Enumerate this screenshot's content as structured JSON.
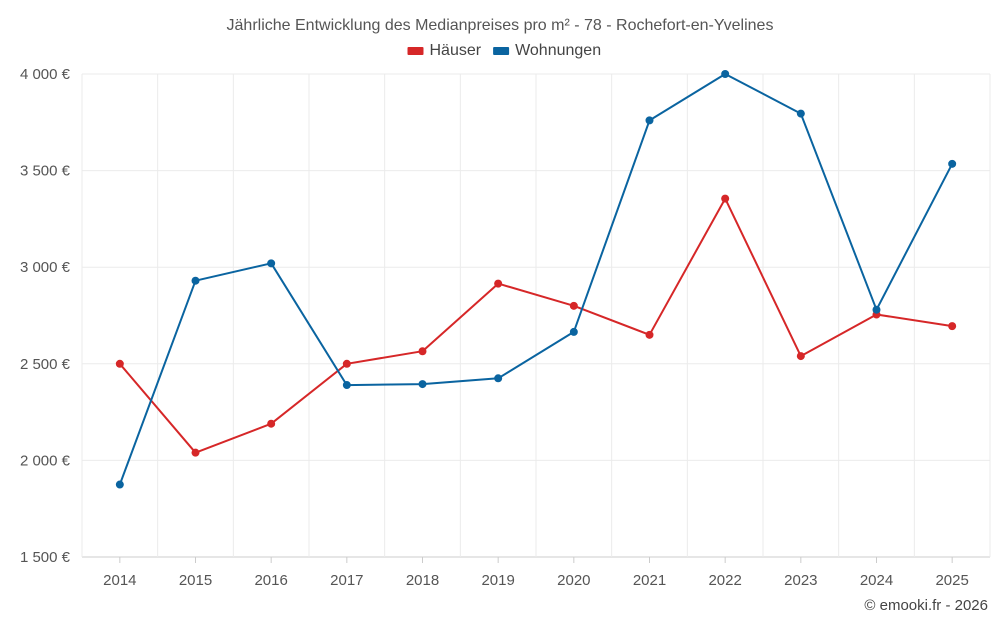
{
  "chart_data": {
    "type": "line",
    "title": "Jährliche Entwicklung des Medianpreises pro m² - 78 - Rochefort-en-Yvelines",
    "categories": [
      "2014",
      "2015",
      "2016",
      "2017",
      "2018",
      "2019",
      "2020",
      "2021",
      "2022",
      "2023",
      "2024",
      "2025"
    ],
    "ylim": [
      1500,
      4000
    ],
    "yticks": [
      1500,
      2000,
      2500,
      3000,
      3500,
      4000
    ],
    "ytick_labels": [
      "1 500 €",
      "2 000 €",
      "2 500 €",
      "3 000 €",
      "3 500 €",
      "4 000 €"
    ],
    "grid": true,
    "legend_position": "top-center",
    "series": [
      {
        "name": "Häuser",
        "color": "#d62728",
        "values": [
          2500,
          2040,
          2190,
          2500,
          2565,
          2915,
          2800,
          2650,
          3355,
          2540,
          2755,
          2695
        ]
      },
      {
        "name": "Wohnungen",
        "color": "#0a64a0",
        "values": [
          1875,
          2930,
          3020,
          2390,
          2395,
          2425,
          2665,
          3760,
          4000,
          3795,
          2780,
          3535
        ]
      }
    ]
  },
  "credit": "© emooki.fr - 2026"
}
